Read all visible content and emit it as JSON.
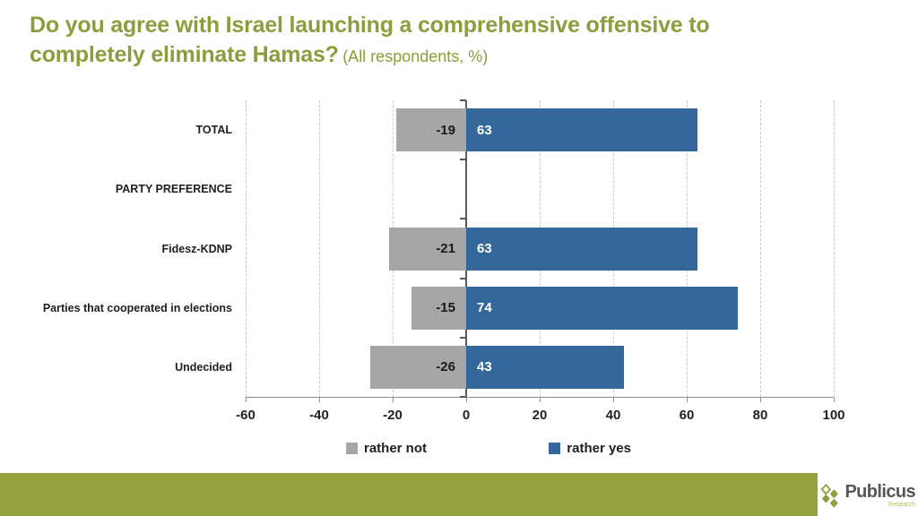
{
  "title": {
    "main": "Do you agree with Israel launching a comprehensive offensive to\ncompletely eliminate Hamas?",
    "subtitle": "(All respondents, %)"
  },
  "colors": {
    "title_green": "#8e9c3b",
    "footer_green": "#95a13e",
    "logo_green": "#8ca03c",
    "zero_line": "#595959",
    "gridline": "#c9c9c9"
  },
  "chart_data": {
    "type": "bar",
    "orientation": "horizontal",
    "diverging": true,
    "categories": [
      "TOTAL",
      "PARTY PREFERENCE",
      "Fidesz-KDNP",
      "Parties that cooperated in elections",
      "Undecided"
    ],
    "series": [
      {
        "name": "rather not",
        "color": "#a6a6a6",
        "values": [
          -19,
          null,
          -21,
          -15,
          -26
        ]
      },
      {
        "name": "rather yes",
        "color": "#35689a",
        "values": [
          63,
          null,
          63,
          74,
          43
        ]
      }
    ],
    "xlim": [
      -60,
      100
    ],
    "xticks": [
      -60,
      -40,
      -20,
      0,
      20,
      40,
      60,
      80,
      100
    ],
    "grid": "dashed-vertical",
    "legend_position": "bottom",
    "value_labels": "inside-near-zero"
  },
  "footer": {
    "brand": "Publicus",
    "brand_sub": "Research"
  }
}
